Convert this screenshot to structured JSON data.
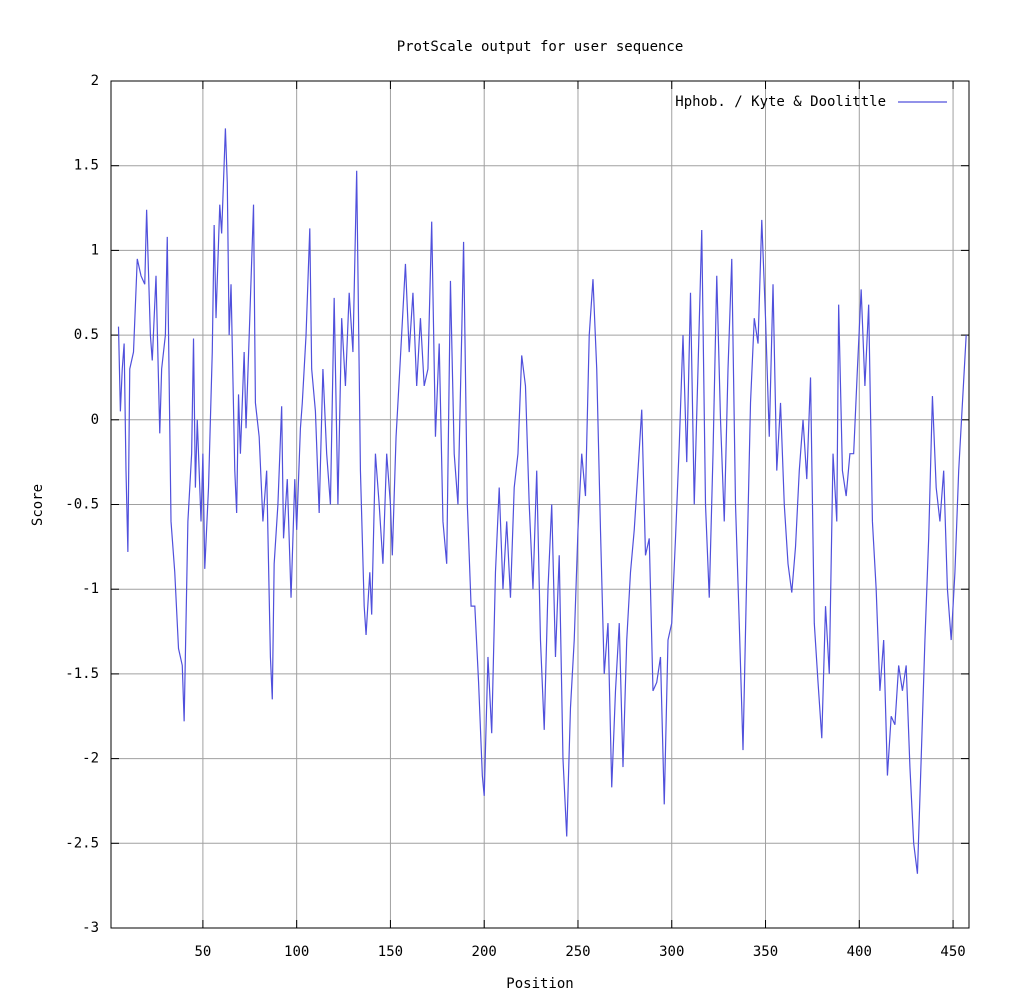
{
  "chart_data": {
    "type": "line",
    "title": "ProtScale output for user sequence",
    "x_label": "Position",
    "y_label": "Score",
    "xlim": [
      1,
      458.5
    ],
    "ylim": [
      -3,
      2
    ],
    "xticks": [
      50,
      100,
      150,
      200,
      250,
      300,
      350,
      400,
      450
    ],
    "yticks": [
      -3,
      -2.5,
      -2,
      -1.5,
      -1,
      -0.5,
      0,
      0.5,
      1,
      1.5,
      2
    ],
    "grid": true,
    "legend": "top-right",
    "x": [
      5,
      6,
      7,
      8,
      9,
      10,
      11,
      13,
      15,
      17,
      19,
      20,
      22,
      23,
      25,
      27,
      28,
      30,
      31,
      33,
      35,
      37,
      39,
      40,
      42,
      44,
      45,
      46,
      47,
      49,
      50,
      51,
      53,
      55,
      56,
      57,
      59,
      60,
      62,
      63,
      64,
      65,
      67,
      68,
      69,
      70,
      72,
      73,
      75,
      77,
      78,
      80,
      82,
      84,
      86,
      87,
      88,
      90,
      92,
      93,
      95,
      97,
      99,
      100,
      102,
      103,
      105,
      107,
      108,
      110,
      112,
      114,
      116,
      118,
      120,
      122,
      124,
      126,
      128,
      130,
      132,
      134,
      136,
      137,
      139,
      140,
      142,
      144,
      146,
      148,
      150,
      151,
      153,
      155,
      158,
      160,
      162,
      164,
      166,
      168,
      170,
      172,
      174,
      176,
      178,
      180,
      182,
      184,
      186,
      188,
      189,
      191,
      193,
      195,
      197,
      199,
      200,
      202,
      204,
      206,
      208,
      210,
      212,
      214,
      216,
      218,
      220,
      222,
      224,
      226,
      228,
      230,
      232,
      234,
      236,
      238,
      240,
      242,
      244,
      246,
      248,
      250,
      252,
      254,
      256,
      258,
      260,
      262,
      264,
      266,
      268,
      270,
      272,
      274,
      276,
      278,
      280,
      282,
      284,
      286,
      288,
      290,
      292,
      294,
      296,
      298,
      300,
      302,
      304,
      306,
      308,
      310,
      312,
      314,
      316,
      318,
      320,
      322,
      324,
      326,
      328,
      330,
      332,
      334,
      336,
      338,
      340,
      342,
      344,
      346,
      348,
      350,
      352,
      354,
      356,
      358,
      360,
      362,
      364,
      366,
      368,
      370,
      372,
      374,
      376,
      378,
      380,
      382,
      384,
      386,
      388,
      389,
      391,
      393,
      395,
      397,
      399,
      401,
      403,
      405,
      407,
      409,
      411,
      413,
      415,
      417,
      419,
      421,
      423,
      425,
      427,
      429,
      431,
      433,
      435,
      437,
      439,
      441,
      443,
      445,
      447,
      449,
      451,
      453,
      455,
      457
    ],
    "series": [
      {
        "name": "Hphob. / Kyte & Doolittle",
        "color": "#5050dc",
        "values": [
          0.55,
          0.05,
          0.3,
          0.45,
          -0.3,
          -0.78,
          0.3,
          0.4,
          0.95,
          0.85,
          0.8,
          1.24,
          0.5,
          0.35,
          0.85,
          -0.08,
          0.3,
          0.5,
          1.08,
          -0.6,
          -0.9,
          -1.35,
          -1.45,
          -1.78,
          -0.6,
          -0.2,
          0.48,
          -0.4,
          0.0,
          -0.6,
          -0.2,
          -0.88,
          -0.4,
          0.4,
          1.15,
          0.6,
          1.27,
          1.1,
          1.72,
          1.4,
          0.5,
          0.8,
          -0.3,
          -0.55,
          0.15,
          -0.2,
          0.4,
          -0.05,
          0.6,
          1.27,
          0.1,
          -0.1,
          -0.6,
          -0.3,
          -1.4,
          -1.65,
          -0.85,
          -0.5,
          0.08,
          -0.7,
          -0.35,
          -1.05,
          -0.35,
          -0.65,
          -0.05,
          0.1,
          0.5,
          1.13,
          0.3,
          0.05,
          -0.55,
          0.3,
          -0.2,
          -0.5,
          0.72,
          -0.5,
          0.6,
          0.2,
          0.75,
          0.4,
          1.47,
          -0.3,
          -1.1,
          -1.27,
          -0.9,
          -1.15,
          -0.2,
          -0.5,
          -0.85,
          -0.2,
          -0.5,
          -0.8,
          -0.1,
          0.3,
          0.92,
          0.4,
          0.75,
          0.2,
          0.6,
          0.2,
          0.3,
          1.17,
          -0.1,
          0.45,
          -0.6,
          -0.85,
          0.82,
          -0.2,
          -0.5,
          0.5,
          1.05,
          -0.5,
          -1.1,
          -1.1,
          -1.55,
          -2.1,
          -2.22,
          -1.4,
          -1.85,
          -0.9,
          -0.4,
          -1.0,
          -0.6,
          -1.05,
          -0.4,
          -0.2,
          0.38,
          0.2,
          -0.5,
          -1.0,
          -0.3,
          -1.3,
          -1.83,
          -1.0,
          -0.5,
          -1.4,
          -0.8,
          -2.0,
          -2.46,
          -1.7,
          -1.3,
          -0.65,
          -0.2,
          -0.45,
          0.5,
          0.83,
          0.3,
          -0.65,
          -1.5,
          -1.2,
          -2.17,
          -1.6,
          -1.2,
          -2.05,
          -1.3,
          -0.9,
          -0.65,
          -0.3,
          0.06,
          -0.8,
          -0.7,
          -1.6,
          -1.55,
          -1.4,
          -2.27,
          -1.3,
          -1.2,
          -0.7,
          -0.15,
          0.5,
          -0.25,
          0.75,
          -0.5,
          0.3,
          1.12,
          -0.5,
          -1.05,
          -0.2,
          0.85,
          0.0,
          -0.6,
          0.3,
          0.95,
          -0.5,
          -1.2,
          -1.95,
          -0.9,
          0.1,
          0.6,
          0.45,
          1.18,
          0.6,
          -0.1,
          0.8,
          -0.3,
          0.1,
          -0.5,
          -0.85,
          -1.02,
          -0.75,
          -0.3,
          0.0,
          -0.35,
          0.25,
          -1.2,
          -1.55,
          -1.88,
          -1.1,
          -1.5,
          -0.2,
          -0.6,
          0.68,
          -0.3,
          -0.45,
          -0.2,
          -0.2,
          0.3,
          0.77,
          0.2,
          0.68,
          -0.6,
          -1.0,
          -1.6,
          -1.3,
          -2.1,
          -1.75,
          -1.8,
          -1.45,
          -1.6,
          -1.45,
          -2.05,
          -2.5,
          -2.68,
          -2.0,
          -1.3,
          -0.7,
          0.14,
          -0.4,
          -0.6,
          -0.3,
          -1.0,
          -1.3,
          -0.9,
          -0.3,
          0.1,
          0.5
        ]
      }
    ]
  }
}
